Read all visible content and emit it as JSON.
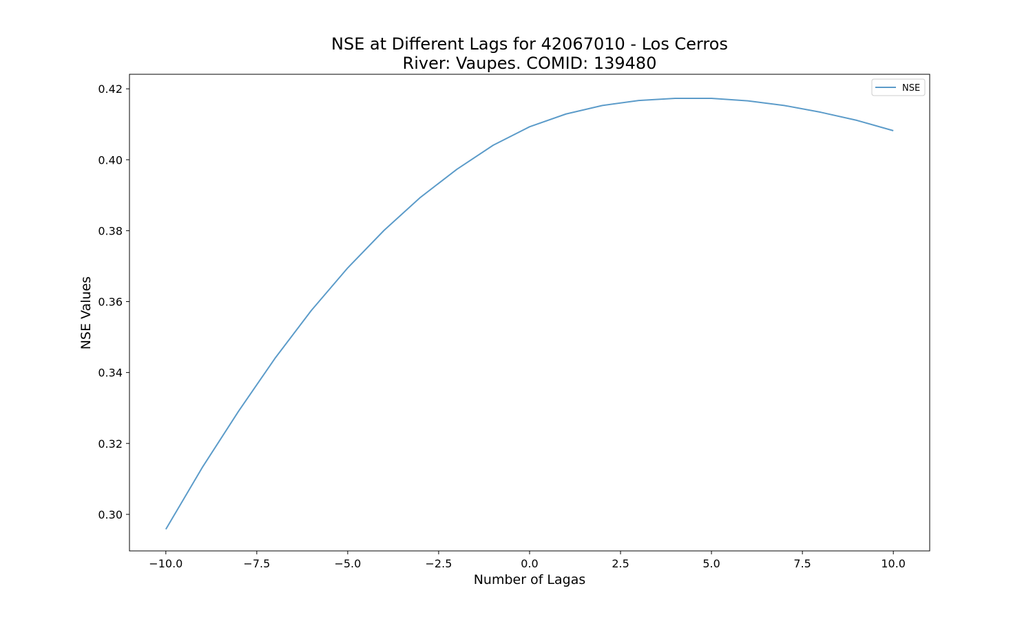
{
  "chart_data": {
    "type": "line",
    "title_line1": "NSE at Different Lags for 42067010 - Los Cerros",
    "title_line2": "River: Vaupes. COMID: 139480",
    "xlabel": "Number of Lagas",
    "ylabel": "NSE Values",
    "xlim": [
      -11,
      11
    ],
    "ylim": [
      0.2897,
      0.4241
    ],
    "xticks": [
      -10.0,
      -7.5,
      -5.0,
      -2.5,
      0.0,
      2.5,
      5.0,
      7.5,
      10.0
    ],
    "xtick_labels": [
      "−10.0",
      "−7.5",
      "−5.0",
      "−2.5",
      "0.0",
      "2.5",
      "5.0",
      "7.5",
      "10.0"
    ],
    "yticks": [
      0.3,
      0.32,
      0.34,
      0.36,
      0.38,
      0.4,
      0.42
    ],
    "ytick_labels": [
      "0.30",
      "0.32",
      "0.34",
      "0.36",
      "0.38",
      "0.40",
      "0.42"
    ],
    "grid": false,
    "legend_position": "top-right",
    "series": [
      {
        "name": "NSE",
        "color": "#5b9bc9",
        "x": [
          -10,
          -9,
          -8,
          -7,
          -6,
          -5,
          -4,
          -3,
          -2,
          -1,
          0,
          1,
          2,
          3,
          4,
          5,
          6,
          7,
          8,
          9,
          10
        ],
        "values": [
          0.2958,
          0.3132,
          0.3291,
          0.344,
          0.3575,
          0.3695,
          0.3801,
          0.3894,
          0.3973,
          0.4041,
          0.4093,
          0.4129,
          0.4153,
          0.4167,
          0.4173,
          0.4173,
          0.4166,
          0.4153,
          0.4134,
          0.4111,
          0.4082
        ]
      }
    ]
  }
}
